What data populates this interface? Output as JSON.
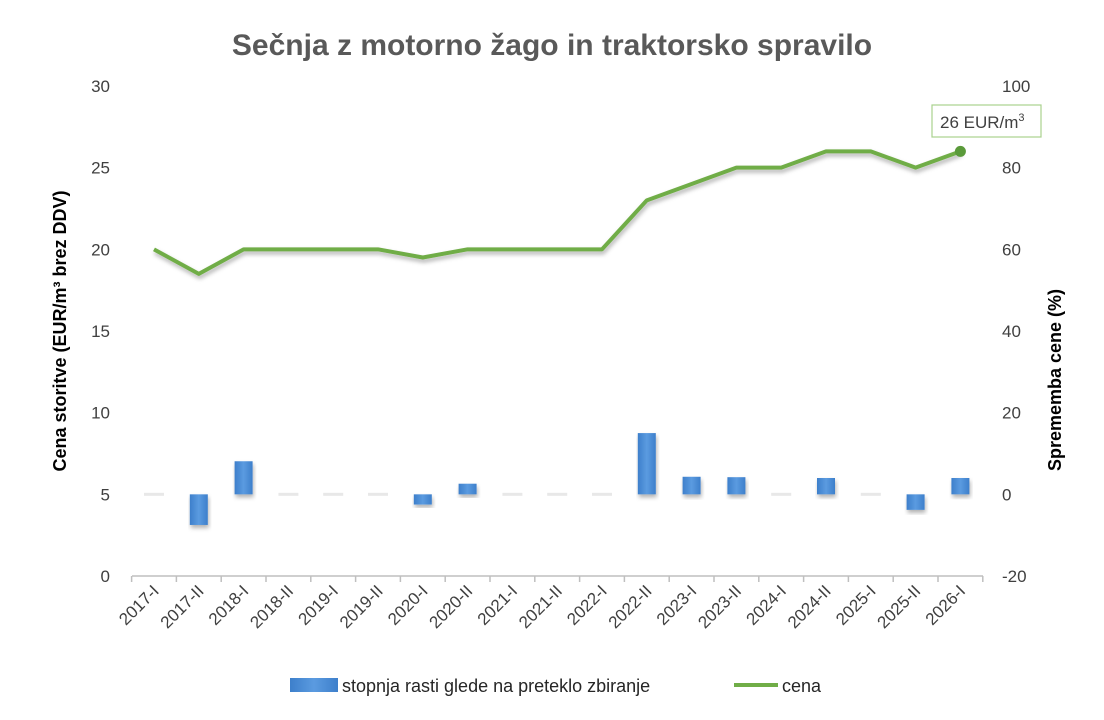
{
  "chart_data": {
    "type": "bar+line",
    "title": "Sečnja z motorno žago in traktorsko spravilo",
    "categories": [
      "2017-I",
      "2017-II",
      "2018-I",
      "2018-II",
      "2019-I",
      "2019-II",
      "2020-I",
      "2020-II",
      "2021-I",
      "2021-II",
      "2022-I",
      "2022-II",
      "2023-I",
      "2023-II",
      "2024-I",
      "2024-II",
      "2025-I",
      "2025-II",
      "2026-I"
    ],
    "series": [
      {
        "name": "stopnja rasti glede na preteklo zbiranje",
        "type": "bar",
        "axis": "right",
        "color": "#4a90d9",
        "values": [
          0,
          -7.5,
          8.1,
          0,
          0,
          0,
          -2.5,
          2.6,
          0,
          0,
          0,
          15,
          4.3,
          4.2,
          0,
          4,
          0,
          -3.8,
          4
        ]
      },
      {
        "name": "cena",
        "type": "line",
        "axis": "left",
        "color": "#70ad47",
        "values": [
          20,
          18.5,
          20,
          20,
          20,
          20,
          19.5,
          20,
          20,
          20,
          20,
          23,
          24,
          25,
          25,
          26,
          26,
          25,
          26
        ]
      }
    ],
    "ylabel_left": "Cena storitve (EUR/m³ brez DDV)",
    "ylabel_right": "Sprememba cene (%)",
    "ylim_left": [
      0,
      30
    ],
    "ylim_right": [
      -20,
      100
    ],
    "yticks_left": [
      "0",
      "5",
      "10",
      "15",
      "20",
      "25",
      "30"
    ],
    "yticks_right": [
      "-20",
      "0",
      "20",
      "40",
      "60",
      "80",
      "100"
    ],
    "annotation": {
      "text": "26 EUR/m",
      "sup": "3",
      "category": "2026-I"
    },
    "legend_position": "bottom",
    "grid": false
  }
}
